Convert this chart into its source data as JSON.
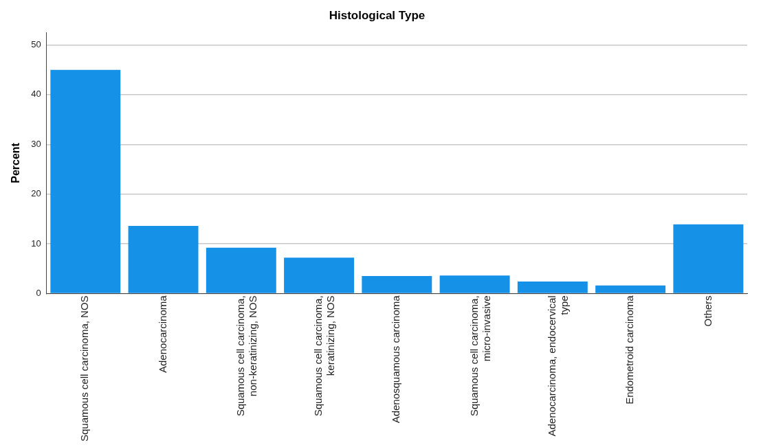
{
  "chart_data": {
    "type": "bar",
    "title": "Histological Type",
    "ylabel": "Percent",
    "categories": [
      "Squamous cell carcinoma, NOS",
      "Adenocarcinoma",
      "Squamous cell carcinoma, non-keratinizing, NOS",
      "Squamous cell carcinoma, keratinizing, NOS",
      "Adenosquamous carcinoma",
      "Squamous cell carcinoma, micro-invasive",
      "Adenocarcinoma, endocervical type",
      "Endometroid carcinoma",
      "Others"
    ],
    "values": [
      45.0,
      13.6,
      9.2,
      7.2,
      3.5,
      3.6,
      2.4,
      1.6,
      13.9
    ],
    "color": "#1591e8",
    "ylim": [
      0,
      52.5
    ],
    "yticks": [
      0,
      10,
      20,
      30,
      40,
      50
    ],
    "grid": "y",
    "legend": false
  }
}
